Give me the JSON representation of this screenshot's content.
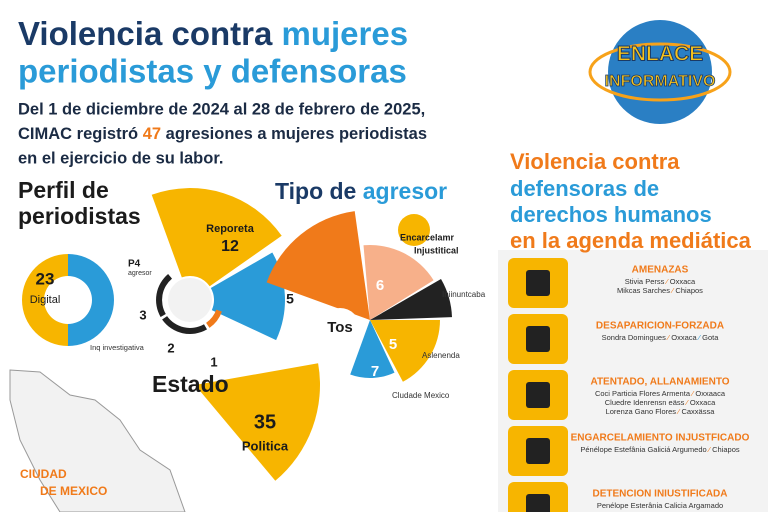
{
  "header": {
    "title_part1": "Violencia contra",
    "title_part2": "mujeres",
    "title_line2": "periodistas y defensoras"
  },
  "intro": {
    "line1": "Del 1 de diciembre de 2024 al 28 de febrero de 2025,",
    "line2_a": "CIMAC registró",
    "count": "47",
    "line2_b": "agresiones a mujeres periodistas",
    "line3": "en el ejercicio de su labor."
  },
  "logo": {
    "line1": "ENLACE",
    "line2": "INFORMATIVO"
  },
  "perfil": {
    "title_line1": "Perfil de",
    "title_line2": "periodistas",
    "donut_value": "23",
    "donut_label": "Digital",
    "donut_note": "Inq investigativa",
    "radial": {
      "label": "Reporeta",
      "value_a": "12",
      "value_b": "5",
      "note_a": "P4",
      "note_b": "agresor",
      "ring_values": [
        "3",
        "2",
        "1"
      ]
    }
  },
  "estado": {
    "title": "Estado",
    "value": "35",
    "label": "Politica",
    "map_label_line1": "CIUDAD",
    "map_label_line2": "DE MEXICO"
  },
  "tipo": {
    "title_part1": "Tipo de",
    "title_part2": "agresor",
    "note_line1": "Encarcelamr",
    "note_line2": "Injustitical",
    "center": "Tos",
    "values": [
      "6",
      "5",
      "7"
    ],
    "labels": [
      "Iniinuntcaba",
      "Aslenenda",
      "Cludade Mexico"
    ]
  },
  "defensoras": {
    "title_line1": "Violencia contra",
    "title_line2": "defensoras de",
    "title_line3": "derechos humanos",
    "title_line4": "en la agenda mediática",
    "items": [
      {
        "label": "AMENAZAS",
        "entries": [
          [
            "Stivia Perss",
            "Oxxaca"
          ],
          [
            "Mikcas Sarches",
            "Chiapos"
          ]
        ]
      },
      {
        "label": "DESAPARICION-FORZADA",
        "entries": [
          [
            "Sondra Domingues",
            "Oxxaca",
            "Gota"
          ]
        ]
      },
      {
        "label": "ATENTADO, ALLANAMIENTO",
        "entries": [
          [
            "Coci Particia Flores Armenta",
            "Oxxaaca"
          ],
          [
            "Cluedre Idenrensn eäss",
            "Oxxaca"
          ],
          [
            "Lorenza Gano Flores",
            "Caxxässa"
          ]
        ]
      },
      {
        "label": "ENGARCELAMIENTO INJUSTFICADO",
        "entries": [
          [
            "Pénélope Estefânia Galiciá Argumedo",
            "Chiapos"
          ]
        ]
      },
      {
        "label": "DETENCION INIUSTIFICADA",
        "entries": [
          [
            "Penélope Esterânia Calicia Argamado"
          ]
        ]
      }
    ]
  }
}
